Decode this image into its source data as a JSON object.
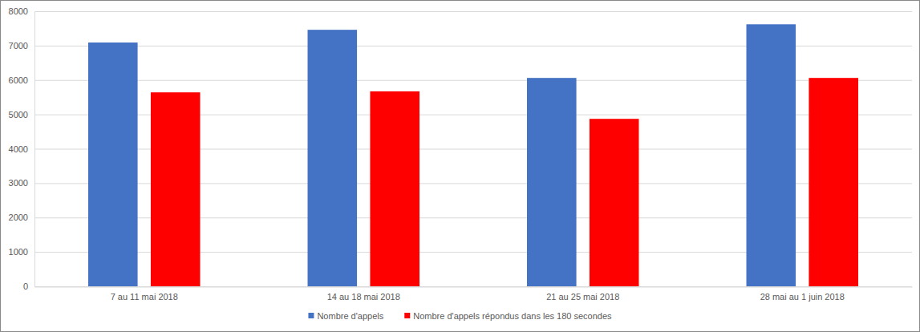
{
  "chart_data": {
    "type": "bar",
    "categories": [
      "7 au 11 mai 2018",
      "14 au 18 mai 2018",
      "21 au 25 mai 2018",
      "28 mai au 1 juin 2018"
    ],
    "series": [
      {
        "name": "Nombre d'appels",
        "color": "#4472c4",
        "values": [
          7090,
          7460,
          6060,
          7620
        ]
      },
      {
        "name": "Nombre d'appels répondus dans les 180 secondes",
        "color": "#ff0000",
        "values": [
          5640,
          5670,
          4870,
          6060
        ]
      }
    ],
    "ylim": [
      0,
      8000
    ],
    "yticks": [
      0,
      1000,
      2000,
      3000,
      4000,
      5000,
      6000,
      7000,
      8000
    ],
    "grid": true,
    "legend": "bottom"
  }
}
